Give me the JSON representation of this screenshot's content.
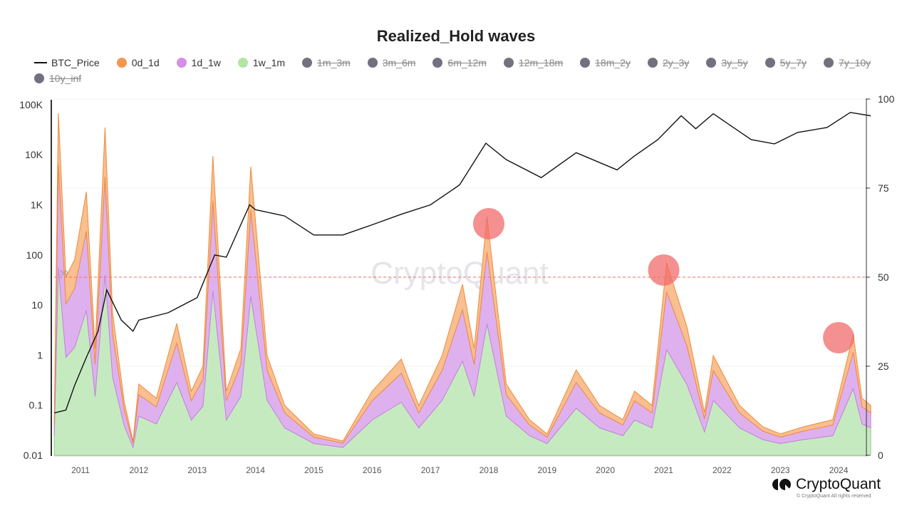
{
  "chart_data": {
    "type": "area",
    "title": "Realized_Hold waves",
    "left_axis": {
      "scale": "log",
      "ticks": [
        "0.01",
        "0.1",
        "1",
        "10",
        "100",
        "1K",
        "10K",
        "100K"
      ],
      "range": [
        0.01,
        100000
      ]
    },
    "right_axis": {
      "scale": "linear",
      "ticks": [
        "0",
        "25",
        "50",
        "75",
        "100"
      ],
      "range": [
        0,
        100
      ]
    },
    "x_ticks": [
      "2011",
      "2012",
      "2013",
      "2014",
      "2015",
      "2016",
      "2017",
      "2018",
      "2019",
      "2020",
      "2021",
      "2022",
      "2023",
      "2024"
    ],
    "grid": true,
    "legend_position": "top",
    "legend": [
      {
        "name": "BTC_Price",
        "kind": "line",
        "color": "#111111",
        "visible": true
      },
      {
        "name": "0d_1d",
        "color": "#f5974f",
        "visible": true
      },
      {
        "name": "1d_1w",
        "color": "#d58fe6",
        "visible": true
      },
      {
        "name": "1w_1m",
        "color": "#b3e3a5",
        "visible": true
      },
      {
        "name": "1m_3m",
        "color": "#737080",
        "visible": false
      },
      {
        "name": "3m_6m",
        "color": "#737080",
        "visible": false
      },
      {
        "name": "6m_12m",
        "color": "#737080",
        "visible": false
      },
      {
        "name": "12m_18m",
        "color": "#737080",
        "visible": false
      },
      {
        "name": "18m_2y",
        "color": "#737080",
        "visible": false
      },
      {
        "name": "2y_3y",
        "color": "#737080",
        "visible": false
      },
      {
        "name": "3y_5y",
        "color": "#737080",
        "visible": false
      },
      {
        "name": "5y_7y",
        "color": "#737080",
        "visible": false
      },
      {
        "name": "7y_10y",
        "color": "#737080",
        "visible": false
      },
      {
        "name": "10y_inf",
        "color": "#737080",
        "visible": false
      }
    ],
    "price": {
      "x": [
        2010.55,
        2010.75,
        2010.9,
        2011.1,
        2011.3,
        2011.45,
        2011.7,
        2011.9,
        2012.0,
        2012.5,
        2013.0,
        2013.3,
        2013.5,
        2013.9,
        2014.0,
        2014.5,
        2015.0,
        2015.5,
        2016.0,
        2016.5,
        2017.0,
        2017.5,
        2017.95,
        2018.3,
        2018.9,
        2019.5,
        2020.2,
        2020.5,
        2020.9,
        2021.3,
        2021.55,
        2021.85,
        2022.5,
        2022.9,
        2023.3,
        2023.8,
        2024.2,
        2024.55
      ],
      "y": [
        0.07,
        0.08,
        0.25,
        0.9,
        3,
        20,
        5,
        3,
        5,
        7,
        14,
        100,
        90,
        1000,
        800,
        600,
        250,
        250,
        400,
        650,
        1000,
        2500,
        17000,
        8000,
        3500,
        11000,
        5000,
        9500,
        20000,
        60000,
        33000,
        66000,
        20000,
        16500,
        28000,
        35000,
        70000,
        60000
      ]
    },
    "waves_x": [
      2010.55,
      2010.62,
      2010.75,
      2010.9,
      2011.1,
      2011.25,
      2011.42,
      2011.55,
      2011.75,
      2011.9,
      2012.0,
      2012.3,
      2012.65,
      2012.9,
      2013.1,
      2013.27,
      2013.5,
      2013.75,
      2013.92,
      2014.2,
      2014.5,
      2015.0,
      2015.5,
      2016.0,
      2016.5,
      2016.8,
      2017.2,
      2017.55,
      2017.75,
      2017.97,
      2018.3,
      2018.7,
      2019.0,
      2019.5,
      2019.9,
      2020.3,
      2020.5,
      2020.8,
      2021.05,
      2021.4,
      2021.7,
      2021.85,
      2022.3,
      2022.7,
      2023.0,
      2023.4,
      2023.9,
      2024.25,
      2024.4,
      2024.55
    ],
    "series": [
      {
        "name": "1w_1m",
        "values": [
          5.5,
          52.8,
          27.5,
          30.3,
          40.7,
          16.5,
          50.6,
          22,
          8.3,
          2.2,
          11,
          8.8,
          20.4,
          9.9,
          13.8,
          46.2,
          9.9,
          16.5,
          44.6,
          15.4,
          7.7,
          3.3,
          2.2,
          9.9,
          14.9,
          7.7,
          15.4,
          26.4,
          16.5,
          36.9,
          11,
          5.5,
          3.3,
          13.2,
          7.7,
          5.5,
          9.9,
          7.7,
          29.7,
          19.8,
          6.6,
          15.4,
          7.7,
          4.4,
          3.3,
          4.4,
          5.5,
          18.7,
          8.8,
          7.7
        ]
      },
      {
        "name": "1d_1w",
        "values": [
          3,
          28.8,
          15,
          16.5,
          22.2,
          9,
          27.6,
          12,
          4.5,
          1.2,
          6,
          4.8,
          11.1,
          5.4,
          7.5,
          25.2,
          5.4,
          9,
          24.3,
          8.4,
          4.2,
          1.8,
          1.2,
          5.4,
          8.1,
          4.2,
          8.4,
          14.4,
          9,
          20.1,
          6,
          3,
          1.8,
          7.2,
          4.2,
          3,
          5.4,
          4.2,
          16.2,
          10.8,
          3.6,
          8.4,
          4.2,
          2.4,
          1.8,
          2.4,
          3,
          10.2,
          4.8,
          4.2
        ]
      },
      {
        "name": "0d_1d",
        "values": [
          1.5,
          14.4,
          7.5,
          8.2,
          11.1,
          4.5,
          13.8,
          6,
          2.2,
          0.6,
          3,
          2.4,
          5.5,
          2.7,
          3.7,
          12.6,
          2.7,
          4.5,
          12.1,
          4.2,
          2.1,
          0.9,
          0.6,
          2.7,
          4,
          2.1,
          4.2,
          7.2,
          4.5,
          10,
          3,
          1.5,
          0.9,
          3.6,
          2.1,
          1.5,
          2.7,
          2.1,
          8.1,
          5.4,
          1.8,
          4.2,
          2.1,
          1.2,
          0.9,
          1.2,
          1.5,
          5.1,
          2.4,
          2.1
        ]
      }
    ],
    "reference_line": {
      "value": 50,
      "label": "50",
      "color": "#f26b6b"
    },
    "highlights": [
      {
        "x": 2018.0,
        "y": 65
      },
      {
        "x": 2021.0,
        "y": 52
      },
      {
        "x": 2024.0,
        "y": 33
      }
    ],
    "highlight_color": "#f26b6b"
  },
  "watermark": "CryptoQuant",
  "branding": {
    "logo_text": "CryptoQuant",
    "copyright": "© CryptoQuant All rights reserved."
  }
}
